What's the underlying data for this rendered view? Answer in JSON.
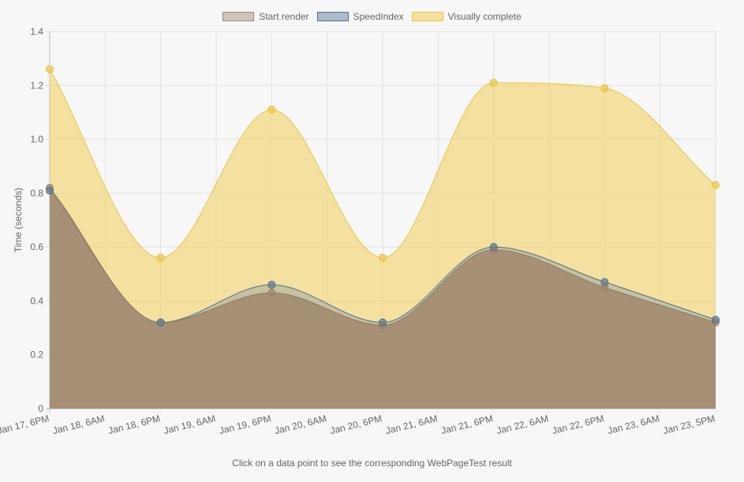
{
  "chart_data": {
    "type": "area",
    "title": "",
    "ylabel": "Time (seconds)",
    "xlabel": "",
    "ylim": [
      0,
      1.4
    ],
    "yticks": [
      "0",
      "0.2",
      "0.4",
      "0.6",
      "0.8",
      "1.0",
      "1.2",
      "1.4"
    ],
    "xticks": [
      "Jan 17, 6PM",
      "Jan 18, 6AM",
      "Jan 18, 6PM",
      "Jan 19, 6AM",
      "Jan 19, 6PM",
      "Jan 20, 6AM",
      "Jan 20, 6PM",
      "Jan 21, 6AM",
      "Jan 21, 6PM",
      "Jan 22, 6AM",
      "Jan 22, 6PM",
      "Jan 23, 6AM",
      "Jan 23, 5PM"
    ],
    "grid": true,
    "legend_position": "top",
    "point_x_tick_index": [
      0,
      2,
      4,
      6,
      8,
      10,
      12
    ],
    "series": [
      {
        "name": "Start render",
        "color": "#a0877a",
        "values": [
          0.82,
          0.32,
          0.43,
          0.31,
          0.59,
          0.45,
          0.32
        ]
      },
      {
        "name": "SpeedIndex",
        "color": "#6e8aa5",
        "values": [
          0.81,
          0.32,
          0.46,
          0.32,
          0.6,
          0.47,
          0.33
        ]
      },
      {
        "name": "Visually complete",
        "color": "#f2cf5a",
        "values": [
          1.26,
          0.56,
          1.11,
          0.56,
          1.21,
          1.19,
          0.83
        ]
      }
    ]
  },
  "footer_text": "Click on a data point to see the corresponding WebPageTest result"
}
